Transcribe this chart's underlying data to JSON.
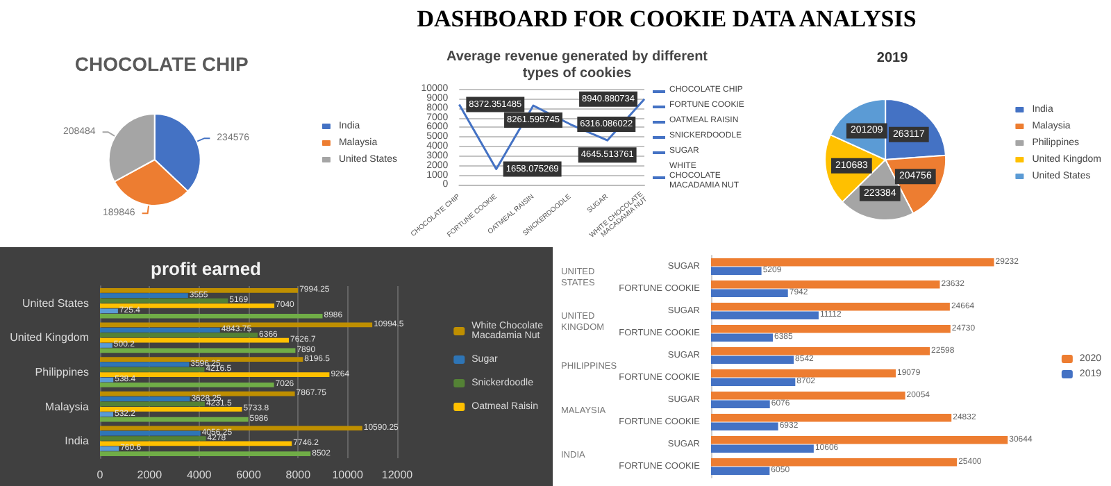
{
  "chart_data": [
    {
      "type": "other",
      "title": "DASHBOARD FOR COOKIE DATA ANALYSIS"
    },
    {
      "type": "pie",
      "title": "CHOCOLATE CHIP",
      "categories": [
        "India",
        "Malaysia",
        "United States"
      ],
      "values": [
        234576,
        189846,
        208484
      ],
      "colors": [
        "#4472c4",
        "#ed7d31",
        "#a5a5a5"
      ],
      "data_labels": true,
      "legend": "right"
    },
    {
      "type": "line",
      "title": "Average revenue generated by different types of cookies",
      "categories": [
        "CHOCOLATE CHIP",
        "FORTUNE COOKIE",
        "OATMEAL RAISIN",
        "SNICKERDOODLE",
        "SUGAR",
        "WHITE CHOCOLATE MACADAMIA NUT"
      ],
      "series": [
        {
          "color": "#4472c4",
          "values": [
            8372.351485,
            1658.075269,
            8261.595745,
            6316.086022,
            4645.513761,
            8940.880734
          ]
        }
      ],
      "ylim": [
        0,
        10000
      ],
      "yticks": [
        0,
        1000,
        2000,
        3000,
        4000,
        5000,
        6000,
        7000,
        8000,
        9000,
        10000
      ],
      "grid": "y",
      "data_labels": true
    },
    {
      "type": "pie",
      "title": "2019",
      "categories": [
        "India",
        "Malaysia",
        "Philippines",
        "United Kingdom",
        "United States"
      ],
      "values": [
        263117,
        204756,
        223384,
        210683,
        201209
      ],
      "colors": [
        "#4472c4",
        "#ed7d31",
        "#a5a5a5",
        "#ffc000",
        "#5b9bd5"
      ],
      "data_labels": true,
      "legend": "right"
    },
    {
      "type": "bar",
      "title": "profit earned",
      "orientation": "horizontal",
      "categories": [
        "United States",
        "United Kingdom",
        "Philippines",
        "Malaysia",
        "India"
      ],
      "series": [
        {
          "name": "White Chocolate Macadamia Nut",
          "color": "#bf8f00",
          "values": [
            7994.25,
            10994.5,
            8196.5,
            7867.75,
            10590.25
          ]
        },
        {
          "name": "Sugar",
          "color": "#2e75b6",
          "values": [
            3555,
            4843.75,
            3596.25,
            3628.25,
            4056.25
          ]
        },
        {
          "name": "Snickerdoodle",
          "color": "#548235",
          "values": [
            5169,
            6366,
            4216.5,
            4231.5,
            4278
          ]
        },
        {
          "name": "Oatmeal Raisin",
          "color": "#ffc000",
          "values": [
            7040,
            7626.7,
            9264,
            5733.8,
            7746.2
          ]
        },
        {
          "color": "#5b9bd5",
          "values": [
            725.4,
            500.2,
            538.4,
            532.2,
            760.6
          ]
        },
        {
          "color": "#70ad47",
          "values": [
            8986,
            7890,
            7026,
            5986,
            8502
          ]
        }
      ],
      "xlim": [
        0,
        12000
      ],
      "xticks": [
        0,
        2000,
        4000,
        6000,
        8000,
        10000,
        12000
      ],
      "grid": "x",
      "data_labels": true,
      "legend": "right"
    },
    {
      "type": "bar",
      "orientation": "horizontal",
      "categories": [
        "SUGAR",
        "FORTUNE COOKIE",
        "SUGAR",
        "FORTUNE COOKIE",
        "SUGAR",
        "FORTUNE COOKIE",
        "SUGAR",
        "FORTUNE COOKIE",
        "SUGAR",
        "FORTUNE COOKIE"
      ],
      "annotations": [
        "UNITED STATES",
        "UNITED KINGDOM",
        "PHILIPPINES",
        "MALAYSIA",
        "INDIA"
      ],
      "series": [
        {
          "name": "2020",
          "color": "#ed7d31",
          "values": [
            29232,
            23632,
            24664,
            24730,
            22598,
            19079,
            20054,
            24832,
            30644,
            25400
          ]
        },
        {
          "name": "2019",
          "color": "#4472c4",
          "values": [
            5209,
            7942,
            11112,
            6385,
            8542,
            8702,
            6076,
            6932,
            10606,
            6050
          ]
        }
      ],
      "tick_labels": "y",
      "data_labels": true,
      "legend": "right"
    }
  ]
}
